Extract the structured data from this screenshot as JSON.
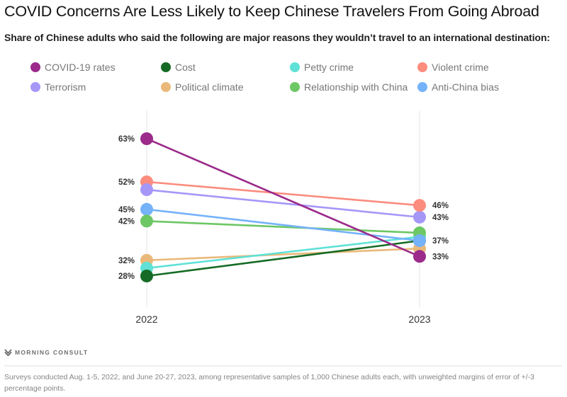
{
  "header": {
    "title": "COVID Concerns Are Less Likely to Keep Chinese Travelers From Going Abroad",
    "subtitle": "Share of Chinese adults who said the following are major reasons they wouldn’t travel to an international destination:"
  },
  "footer": {
    "brand": "MORNING CONSULT",
    "brand_icon": "morning-consult-logo-icon",
    "note": "Surveys conducted Aug. 1-5, 2022, and June 20-27, 2023, among representative samples of 1,000 Chinese adults each, with unweighted margins of error of +/-3 percentage points."
  },
  "chart_data": {
    "type": "line",
    "title": "COVID Concerns Are Less Likely to Keep Chinese Travelers From Going Abroad",
    "subtitle": "Share of Chinese adults who said the following are major reasons they wouldn’t travel to an international destination:",
    "xlabel": "",
    "ylabel": "",
    "x": [
      "2022",
      "2023"
    ],
    "ylim": [
      20,
      70
    ],
    "unit": "%",
    "grid": "vertical lines at each year",
    "legend_placement": "top",
    "series": [
      {
        "name": "COVID-19 rates",
        "color": "#9B2A8A",
        "values": [
          63,
          33
        ],
        "labels": [
          "63%",
          "33%"
        ]
      },
      {
        "name": "Cost",
        "color": "#156B25",
        "values": [
          28,
          37
        ],
        "labels": [
          "28%",
          ""
        ]
      },
      {
        "name": "Petty crime",
        "color": "#5FE1D6",
        "values": [
          30,
          38
        ],
        "labels": [
          "",
          ""
        ]
      },
      {
        "name": "Violent crime",
        "color": "#FB8C7E",
        "values": [
          52,
          46
        ],
        "labels": [
          "52%",
          "46%"
        ]
      },
      {
        "name": "Terrorism",
        "color": "#A597F8",
        "values": [
          50,
          43
        ],
        "labels": [
          "",
          "43%"
        ]
      },
      {
        "name": "Political climate",
        "color": "#EAB97A",
        "values": [
          32,
          35
        ],
        "labels": [
          "32%",
          ""
        ]
      },
      {
        "name": "Relationship with China",
        "color": "#6DC765",
        "values": [
          42,
          39
        ],
        "labels": [
          "42%",
          ""
        ]
      },
      {
        "name": "Anti-China bias",
        "color": "#74B2FA",
        "values": [
          45,
          37
        ],
        "labels": [
          "45%",
          "37%"
        ]
      }
    ]
  }
}
